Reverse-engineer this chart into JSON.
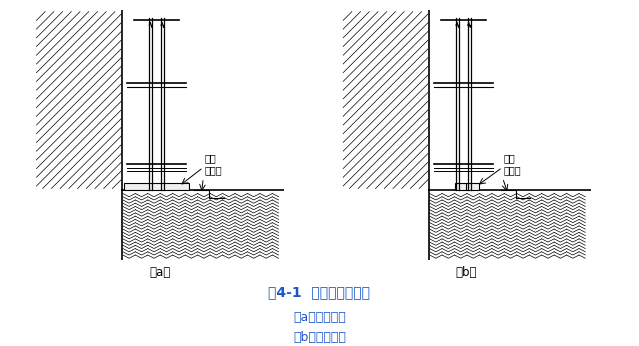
{
  "title": "图4-1  普通脚手架基底",
  "subtitle_a": "（a）横铺垫板",
  "subtitle_b": "（b）顺铺垫板",
  "label_a": "（a）",
  "label_b": "（b）",
  "label_dianmu": "垫木",
  "label_paishui": "排水沟",
  "bg_color": "#ffffff",
  "line_color": "#000000",
  "title_color": "#1a56cc",
  "subtitle_color": "#1a56cc"
}
